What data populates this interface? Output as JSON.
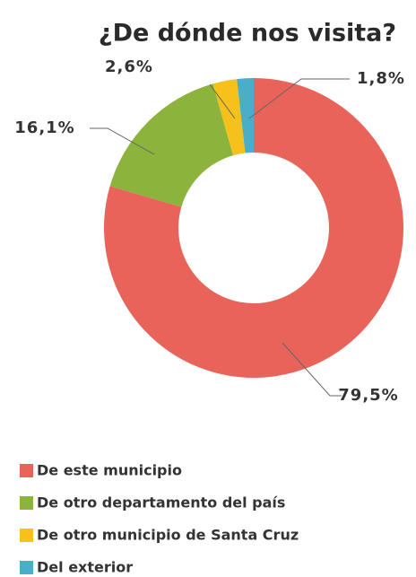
{
  "chart_data": {
    "type": "donut",
    "title": "¿De dónde nos visita?",
    "categories": [
      "De este municipio",
      "De otro departamento del país",
      "De otro municipio de Santa Cruz",
      "Del exterior"
    ],
    "values": [
      79.5,
      16.1,
      2.6,
      1.8
    ],
    "value_labels": [
      "79,5%",
      "16,1%",
      "2,6%",
      "1,8%"
    ],
    "colors": [
      "#e8645a",
      "#8cb43c",
      "#f6c11b",
      "#4aaec6"
    ],
    "legend": "bottom"
  }
}
